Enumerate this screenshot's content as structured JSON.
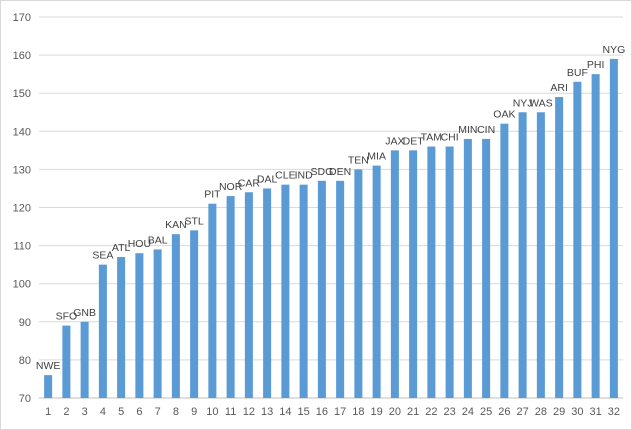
{
  "chart_data": {
    "type": "bar",
    "categories": [
      "1",
      "2",
      "3",
      "4",
      "5",
      "6",
      "7",
      "8",
      "9",
      "10",
      "11",
      "12",
      "13",
      "14",
      "15",
      "16",
      "17",
      "18",
      "19",
      "20",
      "21",
      "22",
      "23",
      "24",
      "25",
      "26",
      "27",
      "28",
      "29",
      "30",
      "31",
      "32"
    ],
    "values": [
      76,
      89,
      90,
      105,
      107,
      108,
      109,
      113,
      114,
      121,
      123,
      124,
      125,
      126,
      126,
      127,
      127,
      130,
      131,
      135,
      135,
      136,
      136,
      138,
      138,
      142,
      145,
      145,
      149,
      153,
      155,
      159
    ],
    "data_labels": [
      "NWE",
      "SFO",
      "GNB",
      "SEA",
      "ATL",
      "HOU",
      "BAL",
      "KAN",
      "STL",
      "PIT",
      "NOR",
      "CAR",
      "DAL",
      "CLE",
      "IND",
      "SDG",
      "DEN",
      "TEN",
      "MIA",
      "JAX",
      "DET",
      "TAM",
      "CHI",
      "MIN",
      "CIN",
      "OAK",
      "NYJ",
      "WAS",
      "ARI",
      "BUF",
      "PHI",
      "NYG"
    ],
    "ylim": [
      70,
      170
    ],
    "yticks": [
      "70",
      "80",
      "90",
      "100",
      "110",
      "120",
      "130",
      "140",
      "150",
      "160",
      "170"
    ],
    "grid": true,
    "legend": "none",
    "bar_color": "#5B9BD5"
  }
}
